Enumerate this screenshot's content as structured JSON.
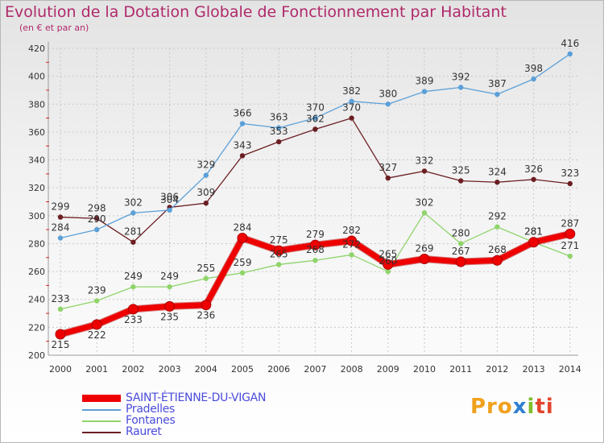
{
  "title": "Evolution de la Dotation Globale de Fonctionnement par Habitant",
  "subtitle": "(en € et par an)",
  "logo": {
    "part1": "Pro",
    "part2": "x",
    "part3": "i",
    "part4": "ti"
  },
  "chart_data": {
    "type": "line",
    "x": [
      "2000",
      "2001",
      "2002",
      "2003",
      "2004",
      "2005",
      "2006",
      "2007",
      "2008",
      "2009",
      "2010",
      "2011",
      "2012",
      "2013",
      "2014"
    ],
    "ylim": [
      200,
      420
    ],
    "yticks": [
      200,
      220,
      240,
      260,
      280,
      300,
      320,
      340,
      360,
      380,
      400,
      420
    ],
    "grid": true,
    "legend_position": "bottom-left",
    "series": [
      {
        "name": "SAINT-ÉTIENNE-DU-VIGAN",
        "color": "#ee0000",
        "width": 7,
        "values": [
          215,
          222,
          233,
          235,
          236,
          284,
          275,
          279,
          282,
          265,
          269,
          267,
          268,
          281,
          287
        ]
      },
      {
        "name": "Pradelles",
        "color": "#5ba0d8",
        "width": 1.3,
        "values": [
          284,
          290,
          302,
          304,
          329,
          366,
          363,
          370,
          382,
          380,
          389,
          392,
          387,
          398,
          416
        ]
      },
      {
        "name": "Fontanes",
        "color": "#8fd46a",
        "width": 1.3,
        "values": [
          233,
          239,
          249,
          249,
          255,
          259,
          265,
          268,
          272,
          260,
          302,
          280,
          292,
          281,
          271
        ]
      },
      {
        "name": "Rauret",
        "color": "#6b1e22",
        "width": 1.3,
        "values": [
          299,
          298,
          281,
          306,
          309,
          343,
          353,
          362,
          370,
          327,
          332,
          325,
          324,
          326,
          323
        ]
      }
    ]
  }
}
